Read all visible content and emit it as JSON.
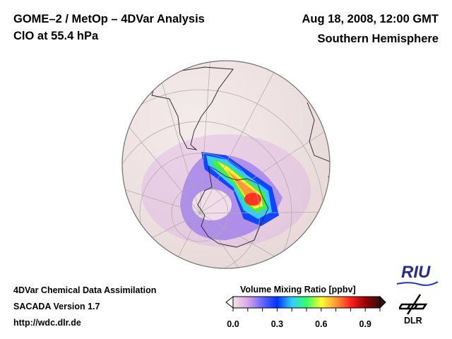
{
  "header": {
    "title": "GOME–2 / MetOp – 4DVar Analysis",
    "subtitle": "ClO at 55.4 hPa",
    "date": "Aug 18, 2008, 12:00 GMT",
    "hemisphere": "Southern Hemisphere"
  },
  "footer": {
    "line1": "4DVar Chemical Data Assimilation",
    "line2": "SACADA Version 1.7",
    "line3": "http://wdc.dlr.de"
  },
  "map": {
    "projection": "orthographic, south polar view",
    "background_color": "#f2e6e6",
    "features": [
      "coastlines",
      "graticule",
      "ClO concentration field"
    ],
    "max_region": "Antarctic Peninsula / Weddell Sea sector"
  },
  "colorbar": {
    "title": "Volume Mixing Ratio [ppbv]",
    "ticks": [
      "0.0",
      "0.3",
      "0.6",
      "0.9"
    ],
    "range": [
      0.0,
      1.0
    ],
    "extend": "both",
    "colors": [
      "#f2e6e6",
      "#d9a6e6",
      "#6666ff",
      "#0033ff",
      "#33ccff",
      "#33ff66",
      "#ffff33",
      "#ff9933",
      "#ff2222",
      "#990000",
      "#331111"
    ]
  },
  "logos": {
    "riu": "RIU",
    "dlr": "DLR"
  }
}
